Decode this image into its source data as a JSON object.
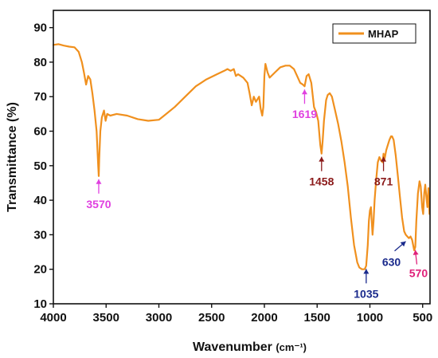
{
  "chart_data": {
    "type": "line",
    "xlabel": "Wavenumber",
    "xlabel_unit": "(cm⁻¹)",
    "ylabel": "Transmittance (%)",
    "xlim": [
      4000,
      430
    ],
    "ylim": [
      10,
      95
    ],
    "x_ticks": [
      4000,
      3500,
      3000,
      2500,
      2000,
      1500,
      1000,
      500
    ],
    "y_ticks": [
      10,
      20,
      30,
      40,
      50,
      60,
      70,
      80,
      90
    ],
    "grid": false,
    "legend_position": "top-right",
    "series": [
      {
        "name": "MHAP",
        "color": "#F0901E",
        "points": [
          [
            4000,
            85
          ],
          [
            3950,
            85.2
          ],
          [
            3900,
            84.8
          ],
          [
            3850,
            84.5
          ],
          [
            3800,
            84.3
          ],
          [
            3760,
            83
          ],
          [
            3730,
            80
          ],
          [
            3710,
            77
          ],
          [
            3690,
            73.5
          ],
          [
            3670,
            76
          ],
          [
            3650,
            75
          ],
          [
            3630,
            71
          ],
          [
            3610,
            66
          ],
          [
            3590,
            60
          ],
          [
            3575,
            50
          ],
          [
            3570,
            47
          ],
          [
            3565,
            52
          ],
          [
            3555,
            60
          ],
          [
            3540,
            64
          ],
          [
            3520,
            66
          ],
          [
            3505,
            63
          ],
          [
            3490,
            65
          ],
          [
            3460,
            64.5
          ],
          [
            3400,
            65
          ],
          [
            3300,
            64.5
          ],
          [
            3200,
            63.5
          ],
          [
            3100,
            63
          ],
          [
            3000,
            63.3
          ],
          [
            2950,
            64.5
          ],
          [
            2850,
            67
          ],
          [
            2750,
            70
          ],
          [
            2650,
            73
          ],
          [
            2550,
            75
          ],
          [
            2450,
            76.5
          ],
          [
            2380,
            77.5
          ],
          [
            2350,
            78
          ],
          [
            2320,
            77.5
          ],
          [
            2290,
            78
          ],
          [
            2270,
            76
          ],
          [
            2250,
            76.5
          ],
          [
            2200,
            75.5
          ],
          [
            2160,
            74
          ],
          [
            2140,
            71
          ],
          [
            2120,
            67.5
          ],
          [
            2100,
            70
          ],
          [
            2080,
            68.5
          ],
          [
            2060,
            69.5
          ],
          [
            2050,
            70
          ],
          [
            2035,
            66.5
          ],
          [
            2020,
            64.5
          ],
          [
            2010,
            67
          ],
          [
            2000,
            76
          ],
          [
            1990,
            79.5
          ],
          [
            1970,
            77
          ],
          [
            1950,
            75.5
          ],
          [
            1900,
            77
          ],
          [
            1850,
            78.5
          ],
          [
            1800,
            79
          ],
          [
            1760,
            79
          ],
          [
            1720,
            78
          ],
          [
            1690,
            76
          ],
          [
            1660,
            74
          ],
          [
            1635,
            73.5
          ],
          [
            1619,
            73
          ],
          [
            1600,
            76
          ],
          [
            1580,
            76.5
          ],
          [
            1555,
            74
          ],
          [
            1530,
            67
          ],
          [
            1510,
            65.5
          ],
          [
            1490,
            63
          ],
          [
            1470,
            56
          ],
          [
            1458,
            53.5
          ],
          [
            1448,
            57
          ],
          [
            1435,
            63
          ],
          [
            1415,
            69
          ],
          [
            1400,
            70.5
          ],
          [
            1380,
            71
          ],
          [
            1360,
            70
          ],
          [
            1330,
            66
          ],
          [
            1300,
            62
          ],
          [
            1270,
            57
          ],
          [
            1240,
            51
          ],
          [
            1210,
            44
          ],
          [
            1180,
            35
          ],
          [
            1150,
            27
          ],
          [
            1120,
            22
          ],
          [
            1100,
            20.5
          ],
          [
            1075,
            20
          ],
          [
            1050,
            20
          ],
          [
            1035,
            21
          ],
          [
            1020,
            27
          ],
          [
            1010,
            34
          ],
          [
            1000,
            37
          ],
          [
            990,
            38
          ],
          [
            975,
            30
          ],
          [
            965,
            34
          ],
          [
            955,
            40
          ],
          [
            940,
            46
          ],
          [
            925,
            51
          ],
          [
            910,
            52.5
          ],
          [
            895,
            51.5
          ],
          [
            880,
            51
          ],
          [
            871,
            53.5
          ],
          [
            860,
            52
          ],
          [
            845,
            54.5
          ],
          [
            830,
            56
          ],
          [
            815,
            57.5
          ],
          [
            800,
            58.5
          ],
          [
            790,
            58.5
          ],
          [
            775,
            57.5
          ],
          [
            755,
            53
          ],
          [
            735,
            47
          ],
          [
            715,
            41
          ],
          [
            695,
            35
          ],
          [
            675,
            31
          ],
          [
            660,
            30
          ],
          [
            645,
            29.5
          ],
          [
            630,
            29
          ],
          [
            615,
            29.5
          ],
          [
            600,
            28.5
          ],
          [
            590,
            27
          ],
          [
            580,
            25.5
          ],
          [
            570,
            26.5
          ],
          [
            560,
            34
          ],
          [
            545,
            42
          ],
          [
            530,
            45.5
          ],
          [
            518,
            44
          ],
          [
            505,
            38
          ],
          [
            495,
            36
          ],
          [
            485,
            42
          ],
          [
            475,
            44.5
          ],
          [
            465,
            41
          ],
          [
            455,
            38
          ],
          [
            445,
            43.5
          ],
          [
            435,
            36
          ]
        ]
      }
    ],
    "annotations": [
      {
        "label": "3570",
        "x": 3570,
        "y": 47,
        "color": "#E040E0",
        "dir": "below"
      },
      {
        "label": "1619",
        "x": 1619,
        "y": 73,
        "color": "#E040E0",
        "dir": "below"
      },
      {
        "label": "1458",
        "x": 1458,
        "y": 53.5,
        "color": "#8B1A1A",
        "dir": "below"
      },
      {
        "label": "1035",
        "x": 1035,
        "y": 21,
        "color": "#1A2A8C",
        "dir": "below"
      },
      {
        "label": "871",
        "x": 871,
        "y": 53.5,
        "color": "#8B1A1A",
        "dir": "below"
      },
      {
        "label": "630",
        "x": 630,
        "y": 29,
        "color": "#1A2A8C",
        "dir": "below-left"
      },
      {
        "label": "570",
        "x": 570,
        "y": 26.5,
        "color": "#E0207A",
        "dir": "below-right"
      }
    ]
  }
}
